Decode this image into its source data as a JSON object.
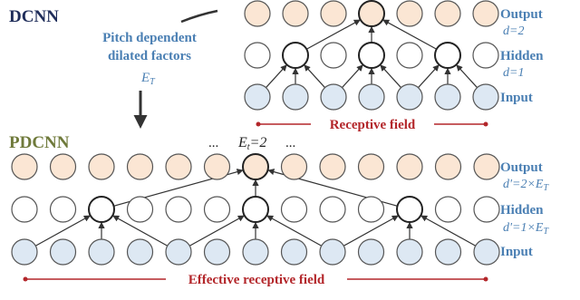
{
  "dcnn": {
    "title": "DCNN",
    "pitch_line1": "Pitch dependent",
    "pitch_line2": "dilated factors",
    "pitch_sym": "E",
    "pitch_sub": "T",
    "output_label": "Output",
    "output_d": "d=2",
    "hidden_label": "Hidden",
    "hidden_d": "d=1",
    "input_label": "Input",
    "receptive": "Receptive field"
  },
  "pdcnn": {
    "title": "PDCNN",
    "dots_left": "...",
    "dots_right": "...",
    "et_sym": "E",
    "et_sub": "t",
    "et_val": "=2",
    "output_label": "Output",
    "output_d_prefix": "d'=2×E",
    "output_d_sub": "T",
    "hidden_label": "Hidden",
    "hidden_d_prefix": "d'=1×E",
    "hidden_d_sub": "T",
    "input_label": "Input",
    "receptive": "Effective receptive field"
  },
  "colors": {
    "output_node": "#fbe6d4",
    "hidden_node": "#ffffff",
    "input_node": "#dde8f3",
    "label_blue": "#4a7fb3",
    "receptive_red": "#b3262a"
  }
}
